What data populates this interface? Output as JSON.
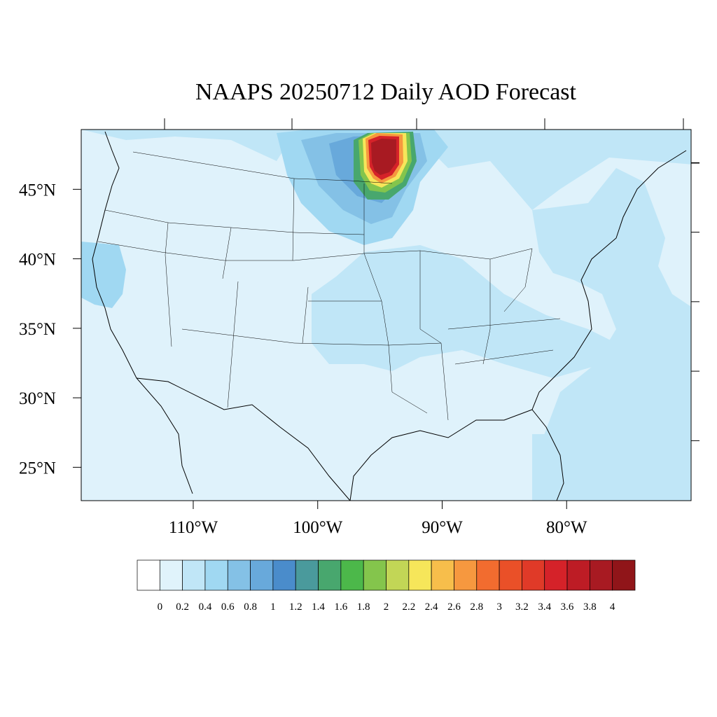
{
  "title": "NAAPS 20250712 Daily AOD Forecast",
  "map": {
    "lon_range": [
      -119,
      -70
    ],
    "lat_range": [
      22.6,
      49.3
    ],
    "lat_ticks": [
      {
        "value": 45,
        "label": "45°N"
      },
      {
        "value": 40,
        "label": "40°N"
      },
      {
        "value": 35,
        "label": "35°N"
      },
      {
        "value": 30,
        "label": "30°N"
      },
      {
        "value": 25,
        "label": "25°N"
      }
    ],
    "lon_ticks": [
      {
        "value": -110,
        "label": "110°W"
      },
      {
        "value": -100,
        "label": "100°W"
      },
      {
        "value": -90,
        "label": "90°W"
      },
      {
        "value": -80,
        "label": "80°W"
      }
    ]
  },
  "colorbar": {
    "labels": [
      "0",
      "0.2",
      "0.4",
      "0.6",
      "0.8",
      "1",
      "1.2",
      "1.4",
      "1.6",
      "1.8",
      "2",
      "2.2",
      "2.4",
      "2.6",
      "2.8",
      "3",
      "3.2",
      "3.4",
      "3.6",
      "3.8",
      "4"
    ],
    "colors": [
      "#ffffff",
      "#e0f3fb",
      "#c0e6f7",
      "#a0d8f2",
      "#84c1e6",
      "#68a9db",
      "#4a8ccb",
      "#4a9a9c",
      "#48a76e",
      "#4cb84a",
      "#84c54c",
      "#c2d656",
      "#f6e65a",
      "#f7be4b",
      "#f6983f",
      "#f26c2f",
      "#ea5028",
      "#e03a28",
      "#d52229",
      "#bd1c25",
      "#a81a22",
      "#901519"
    ]
  },
  "regions": [
    {
      "name": "background",
      "aod": 0.15
    },
    {
      "name": "pacific-coast",
      "aod": 0.35
    },
    {
      "name": "central-plains",
      "aod": 0.3
    },
    {
      "name": "upper-midwest-plume",
      "aod": 0.9
    },
    {
      "name": "plume-core",
      "aod": 3.8
    },
    {
      "name": "atlantic-offshore",
      "aod": 0.3
    }
  ]
}
